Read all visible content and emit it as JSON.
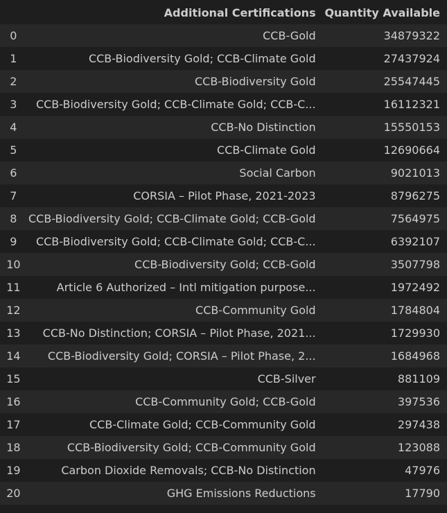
{
  "table": {
    "headers": {
      "index": "",
      "certifications": "Additional Certifications",
      "quantity": "Quantity Available"
    },
    "rows": [
      {
        "index": "0",
        "certifications": "CCB-Gold",
        "quantity": "34879322"
      },
      {
        "index": "1",
        "certifications": "CCB-Biodiversity Gold; CCB-Climate Gold",
        "quantity": "27437924"
      },
      {
        "index": "2",
        "certifications": "CCB-Biodiversity Gold",
        "quantity": "25547445"
      },
      {
        "index": "3",
        "certifications": "CCB-Biodiversity Gold; CCB-Climate Gold; CCB-C...",
        "quantity": "16112321"
      },
      {
        "index": "4",
        "certifications": "CCB-No Distinction",
        "quantity": "15550153"
      },
      {
        "index": "5",
        "certifications": "CCB-Climate Gold",
        "quantity": "12690664"
      },
      {
        "index": "6",
        "certifications": "Social Carbon",
        "quantity": "9021013"
      },
      {
        "index": "7",
        "certifications": "CORSIA – Pilot Phase, 2021-2023",
        "quantity": "8796275"
      },
      {
        "index": "8",
        "certifications": "CCB-Biodiversity Gold; CCB-Climate Gold; CCB-Gold",
        "quantity": "7564975"
      },
      {
        "index": "9",
        "certifications": "CCB-Biodiversity Gold; CCB-Climate Gold; CCB-C...",
        "quantity": "6392107"
      },
      {
        "index": "10",
        "certifications": "CCB-Biodiversity Gold; CCB-Gold",
        "quantity": "3507798"
      },
      {
        "index": "11",
        "certifications": "Article 6 Authorized – Intl mitigation purpose...",
        "quantity": "1972492"
      },
      {
        "index": "12",
        "certifications": "CCB-Community Gold",
        "quantity": "1784804"
      },
      {
        "index": "13",
        "certifications": "CCB-No Distinction; CORSIA – Pilot Phase, 2021...",
        "quantity": "1729930"
      },
      {
        "index": "14",
        "certifications": "CCB-Biodiversity Gold; CORSIA – Pilot Phase, 2...",
        "quantity": "1684968"
      },
      {
        "index": "15",
        "certifications": "CCB-Silver",
        "quantity": "881109"
      },
      {
        "index": "16",
        "certifications": "CCB-Community Gold; CCB-Gold",
        "quantity": "397536"
      },
      {
        "index": "17",
        "certifications": "CCB-Climate Gold; CCB-Community Gold",
        "quantity": "297438"
      },
      {
        "index": "18",
        "certifications": "CCB-Biodiversity Gold; CCB-Community Gold",
        "quantity": "123088"
      },
      {
        "index": "19",
        "certifications": "Carbon Dioxide Removals; CCB-No Distinction",
        "quantity": "47976"
      },
      {
        "index": "20",
        "certifications": "GHG Emissions Reductions",
        "quantity": "17790"
      }
    ]
  },
  "colors": {
    "background": "#1e1e1e",
    "row_stripe": "#282828",
    "text": "#cccccc"
  }
}
